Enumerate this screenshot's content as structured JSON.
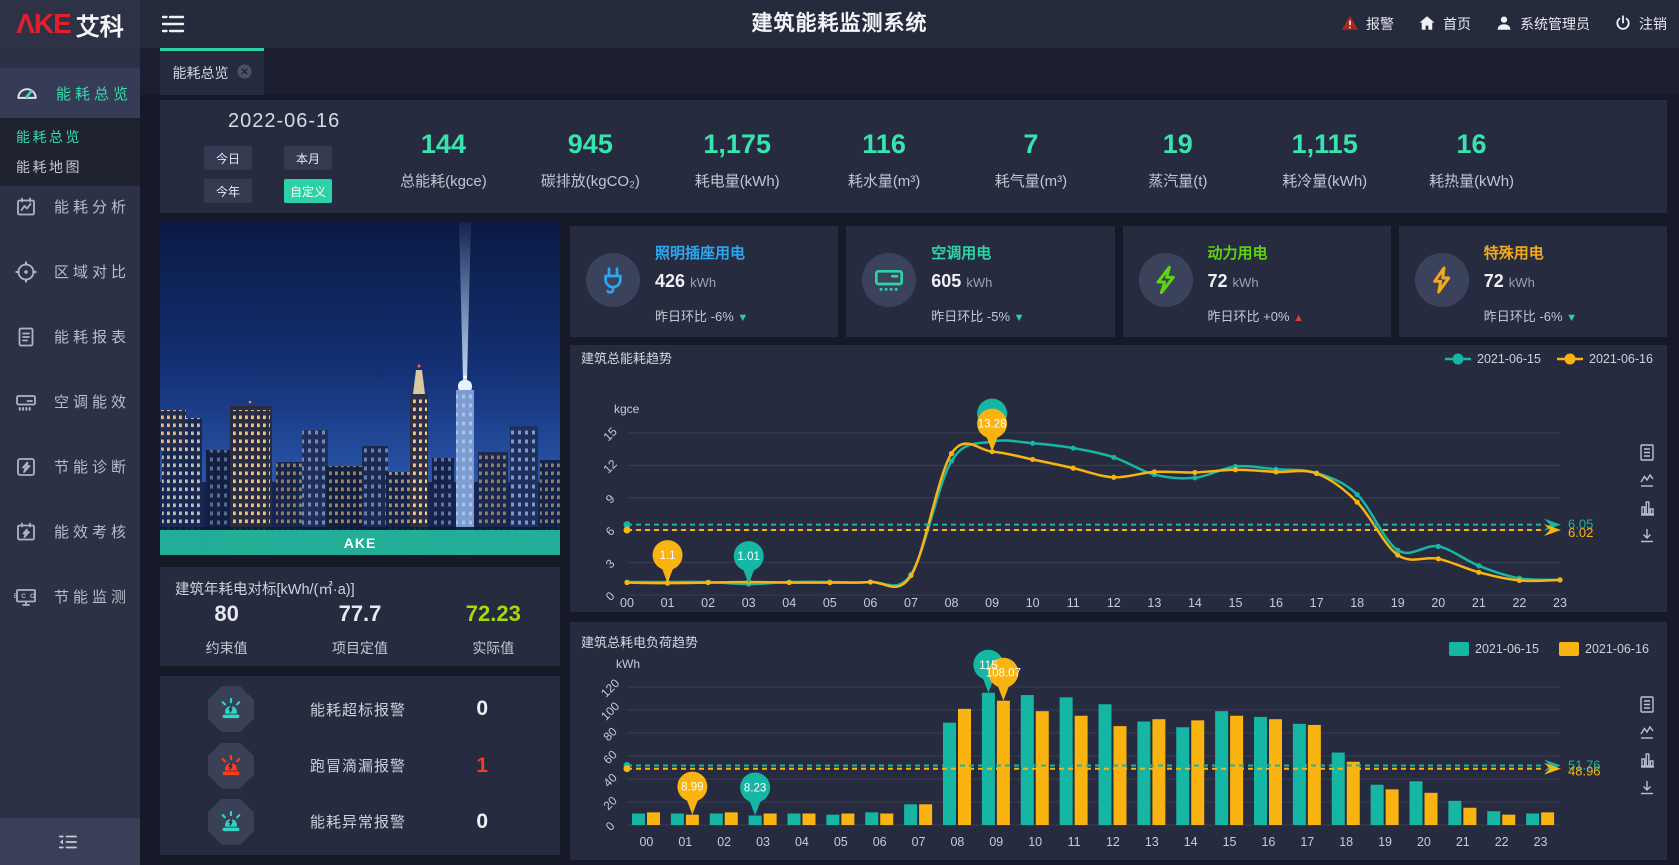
{
  "header": {
    "logo_red": "ΛKE",
    "logo_cn": "艾科",
    "title": "建筑能耗监测系统",
    "nav": [
      {
        "id": "alarm",
        "label": "报警"
      },
      {
        "id": "home",
        "label": "首页"
      },
      {
        "id": "user",
        "label": "系统管理员"
      },
      {
        "id": "logout",
        "label": "注销"
      }
    ]
  },
  "sidebar": {
    "items": [
      {
        "icon": "gauge",
        "label": "能耗总览",
        "active": true
      },
      {
        "icon": "analysis",
        "label": "能耗分析"
      },
      {
        "icon": "compare",
        "label": "区域对比"
      },
      {
        "icon": "report",
        "label": "能耗报表"
      },
      {
        "icon": "hvac",
        "label": "空调能效"
      },
      {
        "icon": "diagnose",
        "label": "节能诊断"
      },
      {
        "icon": "assess",
        "label": "能效考核"
      },
      {
        "icon": "monitor",
        "label": "节能监测"
      }
    ],
    "submenu": [
      {
        "label": "能耗总览",
        "active": true
      },
      {
        "label": "能耗地图",
        "active": false
      }
    ]
  },
  "tab": {
    "label": "能耗总览"
  },
  "filters": {
    "date": "2022-06-16",
    "buttons": [
      {
        "label": "今日",
        "active": false
      },
      {
        "label": "本月",
        "active": false
      },
      {
        "label": "今年",
        "active": false
      },
      {
        "label": "自定义",
        "active": true
      }
    ]
  },
  "stats": [
    {
      "value": "144",
      "label": "总能耗(kgce)"
    },
    {
      "value": "945",
      "label": "碳排放(kgCO₂)"
    },
    {
      "value": "1,175",
      "label": "耗电量(kWh)"
    },
    {
      "value": "116",
      "label": "耗水量(m³)"
    },
    {
      "value": "7",
      "label": "耗气量(m³)"
    },
    {
      "value": "19",
      "label": "蒸汽量(t)"
    },
    {
      "value": "1,115",
      "label": "耗冷量(kWh)"
    },
    {
      "value": "16",
      "label": "耗热量(kWh)"
    }
  ],
  "cards": [
    {
      "icon": "plug",
      "color": "#2ea7f2",
      "title": "照明插座用电",
      "value": "426",
      "unit": "kWh",
      "compare": "昨日环比",
      "delta": "-6%",
      "trend": "down"
    },
    {
      "icon": "ac",
      "color": "#2fd3a7",
      "title": "空调用电",
      "value": "605",
      "unit": "kWh",
      "compare": "昨日环比",
      "delta": "-5%",
      "trend": "down"
    },
    {
      "icon": "boltfill",
      "color": "#5fd412",
      "title": "动力用电",
      "value": "72",
      "unit": "kWh",
      "compare": "昨日环比",
      "delta": "+0%",
      "trend": "up"
    },
    {
      "icon": "bolt",
      "color": "#f4a81c",
      "title": "特殊用电",
      "value": "72",
      "unit": "kWh",
      "compare": "昨日环比",
      "delta": "-6%",
      "trend": "down"
    }
  ],
  "building": {
    "caption": "AKE"
  },
  "benchmark": {
    "title": "建筑年耗电对标[kWh/(㎡·a)]",
    "items": [
      {
        "value": "80",
        "label": "约束值",
        "color": "#e6e9f0"
      },
      {
        "value": "77.7",
        "label": "项目定值",
        "color": "#e6e9f0"
      },
      {
        "value": "72.23",
        "label": "实际值",
        "color": "#a3db02"
      }
    ]
  },
  "alarms": [
    {
      "label": "能耗超标报警",
      "count": "0",
      "color": "#2fd6c8",
      "count_color": "#eef1f6"
    },
    {
      "label": "跑冒滴漏报警",
      "count": "1",
      "color": "#ff3b1c",
      "count_color": "#f53b22"
    },
    {
      "label": "能耗异常报警",
      "count": "0",
      "color": "#2fd6c8",
      "count_color": "#eef1f6"
    }
  ],
  "chart_data": [
    {
      "type": "line",
      "title": "建筑总能耗趋势",
      "ylabel": "kgce",
      "x": [
        "00",
        "01",
        "02",
        "03",
        "04",
        "05",
        "06",
        "07",
        "08",
        "09",
        "10",
        "11",
        "12",
        "13",
        "14",
        "15",
        "16",
        "17",
        "18",
        "19",
        "20",
        "21",
        "22",
        "23"
      ],
      "ylim": [
        0,
        15
      ],
      "yticks": [
        0,
        3,
        6,
        9,
        12,
        15
      ],
      "grid": true,
      "legend_position": "top-right",
      "series": [
        {
          "name": "2021-06-15",
          "color": "#16b6a5",
          "values": [
            1.2,
            1.2,
            1.2,
            1.01,
            1.2,
            1.2,
            1.2,
            1.9,
            12.4,
            14.2,
            14.05,
            13.6,
            12.75,
            11.15,
            10.85,
            11.9,
            11.65,
            11.3,
            9.3,
            4.15,
            4.5,
            2.7,
            1.55,
            1.4
          ],
          "avg_line": {
            "label": "6.05",
            "value": 6.05
          }
        },
        {
          "name": "2021-06-16",
          "color": "#f9b412",
          "values": [
            1.15,
            1.1,
            1.15,
            1.2,
            1.15,
            1.15,
            1.2,
            1.8,
            13.1,
            13.28,
            12.55,
            11.75,
            10.9,
            11.4,
            11.35,
            11.6,
            11.4,
            11.25,
            8.6,
            3.7,
            3.35,
            2.1,
            1.35,
            1.4
          ],
          "avg_line": {
            "label": "6.02",
            "value": 6.02
          }
        }
      ],
      "markers": [
        {
          "series": 0,
          "x": "09",
          "label": ""
        },
        {
          "series": 1,
          "x": "09",
          "label": "13.28"
        },
        {
          "series": 1,
          "x": "01",
          "label": "1.1"
        },
        {
          "series": 0,
          "x": "03",
          "label": "1.01"
        }
      ]
    },
    {
      "type": "bar",
      "title": "建筑总耗电负荷趋势",
      "ylabel": "kWh",
      "x": [
        "00",
        "01",
        "02",
        "03",
        "04",
        "05",
        "06",
        "07",
        "08",
        "09",
        "10",
        "11",
        "12",
        "13",
        "14",
        "15",
        "16",
        "17",
        "18",
        "19",
        "20",
        "21",
        "22",
        "23"
      ],
      "ylim": [
        0,
        120
      ],
      "yticks": [
        0,
        20,
        40,
        60,
        80,
        100,
        120
      ],
      "grid": true,
      "legend_position": "top-right",
      "series": [
        {
          "name": "2021-06-15",
          "color": "#16b6a5",
          "values": [
            10,
            10,
            10,
            8.23,
            10,
            9,
            11,
            18,
            89,
            115,
            113,
            111,
            105,
            90,
            85,
            99,
            94,
            88,
            63,
            35,
            38,
            21,
            12,
            10
          ],
          "avg_line": {
            "label": "51.76",
            "value": 51.76
          }
        },
        {
          "name": "2021-06-16",
          "color": "#f9b412",
          "values": [
            11,
            8.99,
            11,
            10,
            10,
            10,
            10,
            18,
            101,
            108.07,
            99,
            95,
            86,
            92,
            91,
            95,
            92,
            87,
            55,
            31,
            28,
            15,
            9,
            11
          ],
          "avg_line": {
            "label": "48.96",
            "value": 48.96
          }
        }
      ],
      "markers": [
        {
          "series": 0,
          "x": "09",
          "label": "115"
        },
        {
          "series": 1,
          "x": "09",
          "label": "108.07"
        },
        {
          "series": 1,
          "x": "01",
          "label": "8.99"
        },
        {
          "series": 0,
          "x": "03",
          "label": "8.23"
        }
      ]
    }
  ]
}
